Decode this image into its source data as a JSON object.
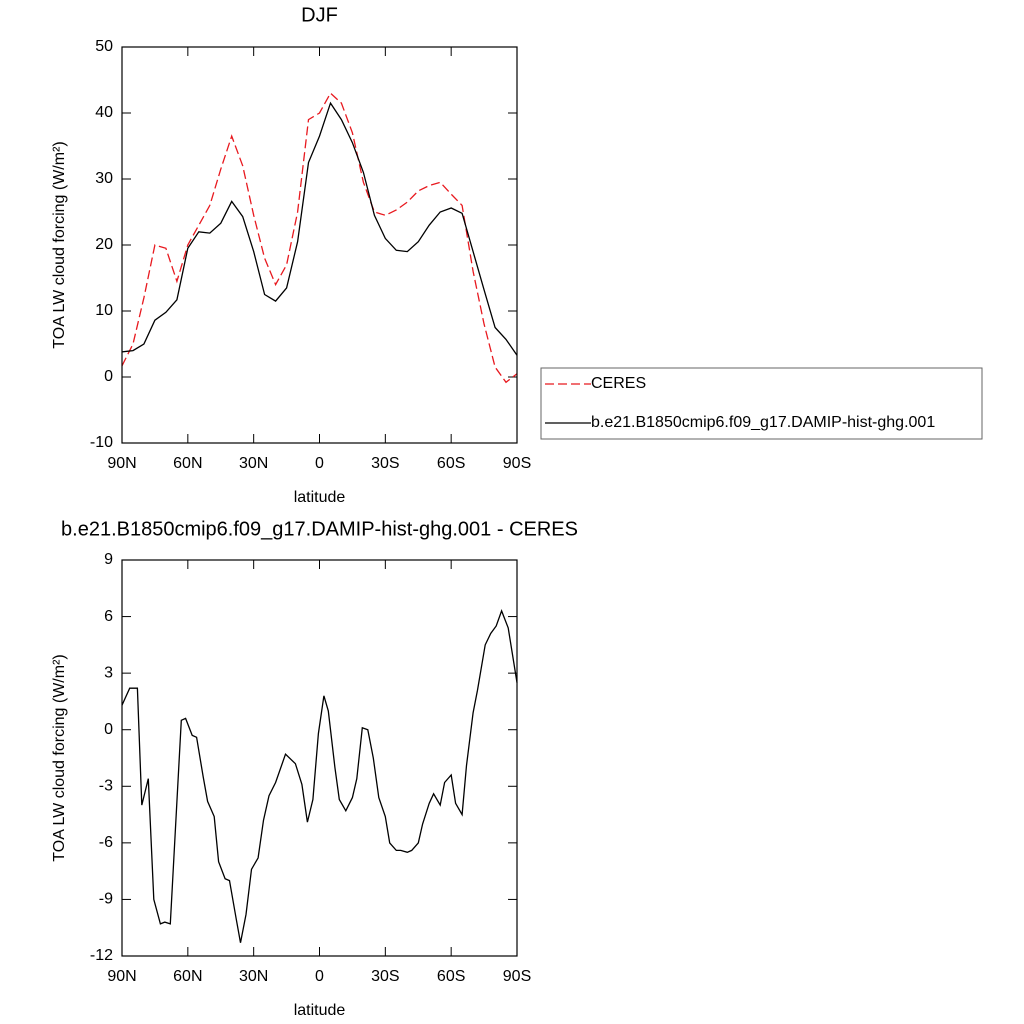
{
  "chart_data": [
    {
      "type": "line",
      "title": "DJF",
      "xlabel": "latitude",
      "ylabel": "TOA LW cloud forcing (W/m²)",
      "x": [
        90,
        85,
        80,
        75,
        70,
        65,
        60,
        55,
        50,
        45,
        40,
        35,
        30,
        25,
        20,
        15,
        10,
        5,
        0,
        -5,
        -10,
        -15,
        -20,
        -25,
        -30,
        -35,
        -40,
        -45,
        -50,
        -55,
        -60,
        -65,
        -70,
        -75,
        -80,
        -85,
        -90
      ],
      "series": [
        {
          "name": "CERES",
          "color": "#e8191f",
          "dash": true,
          "values": [
            1.7,
            5,
            12,
            20,
            19.5,
            14.5,
            20,
            23,
            26,
            31.5,
            36.5,
            32,
            24.5,
            18,
            14,
            17,
            25,
            39,
            40,
            43,
            41.5,
            37,
            29.5,
            25,
            24.5,
            25.3,
            26.5,
            28.2,
            29,
            29.5,
            27.7,
            26,
            16,
            8,
            1.5,
            -0.8,
            0.5
          ]
        },
        {
          "name": "b.e21.B1850cmip6.f09_g17.DAMIP-hist-ghg.001",
          "color": "#000000",
          "dash": false,
          "values": [
            3.8,
            4,
            5,
            8.6,
            9.8,
            11.7,
            19.5,
            22,
            21.8,
            23.3,
            26.6,
            24.3,
            19,
            12.5,
            11.5,
            13.5,
            20.5,
            32.5,
            36.5,
            41.5,
            39,
            35.5,
            31,
            24.5,
            21,
            19.2,
            19,
            20.5,
            23,
            25,
            25.6,
            24.8,
            19,
            13.2,
            7.5,
            5.7,
            3.3
          ]
        }
      ],
      "xlim": [
        90,
        -90
      ],
      "xticks": [
        {
          "value": 90,
          "label": "90N"
        },
        {
          "value": 60,
          "label": "60N"
        },
        {
          "value": 30,
          "label": "30N"
        },
        0,
        {
          "value": -30,
          "label": "30S"
        },
        {
          "value": -60,
          "label": "60S"
        },
        {
          "value": -90,
          "label": "90S"
        }
      ],
      "ylim": [
        -10,
        50
      ],
      "yticks": [
        -10,
        0,
        10,
        20,
        30,
        40,
        50
      ],
      "legend": "right"
    },
    {
      "type": "line",
      "title": "b.e21.B1850cmip6.f09_g17.DAMIP-hist-ghg.001 - CERES",
      "xlabel": "latitude",
      "ylabel": "TOA LW cloud forcing (W/m²)",
      "x": [
        90,
        86.5,
        83,
        81,
        78,
        75.5,
        72.5,
        70.5,
        68,
        63,
        61,
        58,
        56,
        53,
        51,
        48,
        46,
        43,
        41,
        38,
        36,
        33.5,
        31,
        28,
        25.5,
        23,
        20,
        15.5,
        11,
        8,
        5.5,
        3,
        0.5,
        -2,
        -4,
        -7,
        -9,
        -12,
        -15,
        -17,
        -19.5,
        -22,
        -24.5,
        -27,
        -30,
        -32,
        -35,
        -37,
        -40,
        -42,
        -45,
        -47,
        -50,
        -52,
        -55,
        -57,
        -60,
        -62,
        -65,
        -67,
        -70,
        -72,
        -75.5,
        -78,
        -80.5,
        -83,
        -86,
        -90
      ],
      "values": [
        1.3,
        2.2,
        2.2,
        -4,
        -2.6,
        -9,
        -10.3,
        -10.2,
        -10.3,
        0.5,
        0.6,
        -0.3,
        -0.4,
        -2.5,
        -3.8,
        -4.6,
        -7,
        -7.9,
        -8,
        -10,
        -11.3,
        -9.8,
        -7.4,
        -6.8,
        -4.8,
        -3.5,
        -2.8,
        -1.3,
        -1.8,
        -2.9,
        -4.9,
        -3.7,
        -0.2,
        1.8,
        1,
        -2,
        -3.7,
        -4.3,
        -3.6,
        -2.6,
        0.1,
        0,
        -1.5,
        -3.6,
        -4.6,
        -6,
        -6.4,
        -6.4,
        -6.5,
        -6.4,
        -6,
        -5,
        -3.9,
        -3.4,
        -4,
        -2.8,
        -2.4,
        -3.9,
        -4.5,
        -1.9,
        0.9,
        2.1,
        4.5,
        5.1,
        5.5,
        6.3,
        5.4,
        2.5
      ],
      "color": "#000000",
      "xlim": [
        90,
        -90
      ],
      "xticks": [
        {
          "value": 90,
          "label": "90N"
        },
        {
          "value": 60,
          "label": "60N"
        },
        {
          "value": 30,
          "label": "30N"
        },
        0,
        {
          "value": -30,
          "label": "30S"
        },
        {
          "value": -60,
          "label": "60S"
        },
        {
          "value": -90,
          "label": "90S"
        }
      ],
      "ylim": [
        -12,
        9
      ],
      "yticks": [
        -12,
        -9,
        -6,
        -3,
        0,
        3,
        6,
        9
      ]
    }
  ]
}
